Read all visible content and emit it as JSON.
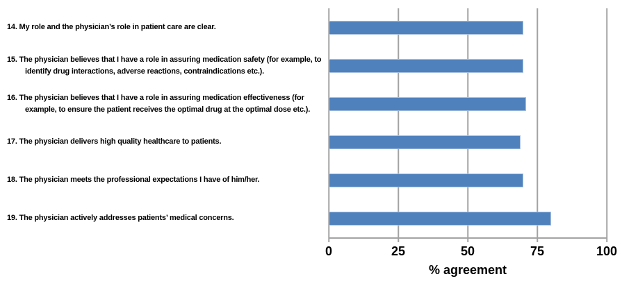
{
  "chart_data": {
    "type": "bar",
    "orientation": "horizontal",
    "categories": [
      "14. My role and the physician’s role in patient care are clear.",
      "15. The physician believes that I have a role in assuring medication safety (for example, to identify drug interactions, adverse reactions, contraindications etc.).",
      "16. The physician believes that I have a role in assuring medication effectiveness (for example, to ensure the patient receives the optimal drug at the optimal dose etc.).",
      "17. The physician delivers high quality healthcare to patients.",
      "18. The physician meets the professional expectations I have of him/her.",
      "19. The physician actively addresses patients’ medical concerns."
    ],
    "values": [
      70,
      70,
      71,
      69,
      70,
      80
    ],
    "xlabel": "% agreement",
    "xlim": [
      0,
      100
    ],
    "xticks": [
      0,
      25,
      50,
      75,
      100
    ],
    "grid": true,
    "legend": false,
    "bar_color": "#4f81bd",
    "bar_border_color": "#a8c0de",
    "gridline_color": "#a3a3a3",
    "text_color": "#000000"
  }
}
